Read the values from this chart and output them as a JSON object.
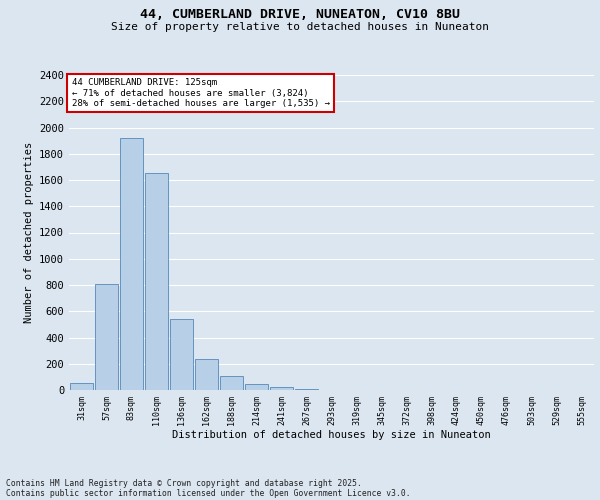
{
  "title1": "44, CUMBERLAND DRIVE, NUNEATON, CV10 8BU",
  "title2": "Size of property relative to detached houses in Nuneaton",
  "xlabel": "Distribution of detached houses by size in Nuneaton",
  "ylabel": "Number of detached properties",
  "annotation_line1": "44 CUMBERLAND DRIVE: 125sqm",
  "annotation_line2": "← 71% of detached houses are smaller (3,824)",
  "annotation_line3": "28% of semi-detached houses are larger (1,535) →",
  "footer1": "Contains HM Land Registry data © Crown copyright and database right 2025.",
  "footer2": "Contains public sector information licensed under the Open Government Licence v3.0.",
  "categories": [
    "31sqm",
    "57sqm",
    "83sqm",
    "110sqm",
    "136sqm",
    "162sqm",
    "188sqm",
    "214sqm",
    "241sqm",
    "267sqm",
    "293sqm",
    "319sqm",
    "345sqm",
    "372sqm",
    "398sqm",
    "424sqm",
    "450sqm",
    "476sqm",
    "503sqm",
    "529sqm",
    "555sqm"
  ],
  "values": [
    50,
    810,
    1920,
    1650,
    540,
    235,
    110,
    45,
    25,
    10,
    0,
    0,
    0,
    0,
    0,
    0,
    0,
    0,
    0,
    0,
    0
  ],
  "bar_color": "#b8cfe8",
  "bar_edge_color": "#5588bb",
  "annotation_box_color": "#ffffff",
  "annotation_box_edge": "#cc0000",
  "background_color": "#dce6f0",
  "plot_bg_color": "#dce6f0",
  "grid_color": "#ffffff",
  "ylim": [
    0,
    2400
  ],
  "yticks": [
    0,
    200,
    400,
    600,
    800,
    1000,
    1200,
    1400,
    1600,
    1800,
    2000,
    2200,
    2400
  ]
}
